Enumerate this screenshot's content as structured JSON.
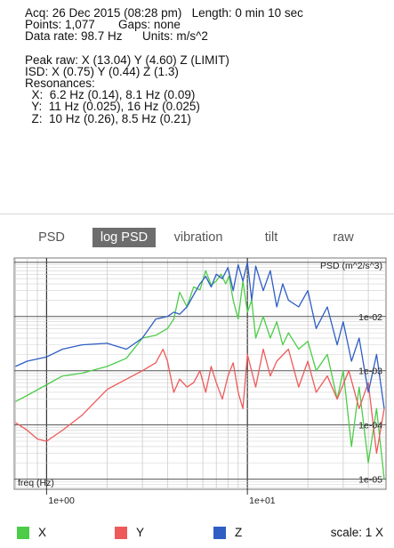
{
  "info": {
    "line1": "Acq: 26 Dec 2015 (08:28 pm)   Length: 0 min 10 sec",
    "line2": "Points: 1,077       Gaps: none",
    "line3": "Data rate: 98.7 Hz      Units: m/s^2",
    "peak": "Peak raw: X (13.04) Y (4.60) Z (LIMIT)",
    "isd": "ISD: X (0.75) Y (0.44) Z (1.3)",
    "resonances_label": "Resonances:",
    "res_x": "  X:  6.2 Hz (0.14), 8.1 Hz (0.09)",
    "res_y": "  Y:  11 Hz (0.025), 16 Hz (0.025)",
    "res_z": "  Z:  10 Hz (0.26), 8.5 Hz (0.21)"
  },
  "tabs": [
    {
      "label": "PSD",
      "active": false
    },
    {
      "label": "log PSD",
      "active": true
    },
    {
      "label": "vibration",
      "active": false
    },
    {
      "label": "tilt",
      "active": false
    },
    {
      "label": "raw",
      "active": false
    }
  ],
  "chart_data": {
    "type": "line",
    "ylabel": "PSD (m^2/s^3)",
    "xlabel": "freq (Hz)",
    "x_scale": "log",
    "y_scale": "log",
    "xlim": [
      0.69,
      49
    ],
    "ylim": [
      6.5e-06,
      0.12
    ],
    "x_ticks": [
      {
        "value": 1,
        "label": "1e+00"
      },
      {
        "value": 10,
        "label": "1e+01"
      }
    ],
    "y_ticks": [
      {
        "value": 0.01,
        "label": "1e-02"
      },
      {
        "value": 0.001,
        "label": "1e-03"
      },
      {
        "value": 0.0001,
        "label": "1e-04"
      },
      {
        "value": 1e-05,
        "label": "1e-05"
      }
    ],
    "grid": true,
    "series": [
      {
        "name": "X",
        "color": "#4ccc48",
        "x": [
          0.7,
          0.8,
          1.0,
          1.2,
          1.5,
          2.0,
          2.5,
          3.0,
          3.5,
          4.0,
          4.3,
          4.6,
          5.0,
          5.4,
          5.8,
          6.2,
          6.6,
          7.0,
          7.4,
          7.8,
          8.1,
          8.5,
          9.0,
          9.5,
          10.0,
          10.5,
          11.0,
          12.0,
          13.0,
          14.0,
          15.0,
          16.0,
          18.0,
          20.0,
          22.0,
          25.0,
          28.0,
          30.0,
          33.0,
          36.0,
          40.0,
          44.0,
          48.0
        ],
        "y": [
          0.00027,
          0.00035,
          0.00055,
          0.0008,
          0.0009,
          0.0012,
          0.0017,
          0.004,
          0.0045,
          0.006,
          0.009,
          0.028,
          0.015,
          0.035,
          0.031,
          0.07,
          0.038,
          0.045,
          0.06,
          0.04,
          0.055,
          0.02,
          0.009,
          0.045,
          0.012,
          0.02,
          0.004,
          0.01,
          0.004,
          0.008,
          0.003,
          0.005,
          0.0025,
          0.0035,
          0.001,
          0.002,
          0.0003,
          0.001,
          4e-05,
          0.0005,
          2e-05,
          0.0002,
          1e-05
        ]
      },
      {
        "name": "Y",
        "color": "#ee5a5a",
        "x": [
          0.7,
          0.8,
          0.9,
          1.0,
          1.2,
          1.5,
          2.0,
          2.5,
          3.0,
          3.5,
          3.8,
          4.0,
          4.3,
          4.6,
          5.0,
          5.4,
          5.8,
          6.2,
          6.6,
          7.0,
          7.5,
          8.0,
          8.5,
          9.0,
          9.5,
          10.0,
          11.0,
          12.0,
          13.0,
          14.0,
          16.0,
          18.0,
          20.0,
          22.0,
          25.0,
          28.0,
          32.0,
          36.0,
          40.0,
          44.0,
          48.0
        ],
        "y": [
          0.00011,
          8e-05,
          5.5e-05,
          5e-05,
          8e-05,
          0.00015,
          0.00045,
          0.0007,
          0.001,
          0.0014,
          0.0025,
          0.0015,
          0.0004,
          0.0007,
          0.0005,
          0.0006,
          0.001,
          0.0004,
          0.0012,
          0.0006,
          0.0003,
          0.0008,
          0.0014,
          0.0004,
          0.0002,
          0.002,
          0.0005,
          0.0025,
          0.0008,
          0.0015,
          0.0025,
          0.0005,
          0.0015,
          0.0004,
          0.0008,
          0.0003,
          0.001,
          0.0002,
          0.0006,
          3e-05,
          0.0002
        ]
      },
      {
        "name": "Z",
        "color": "#2f5ec4",
        "x": [
          0.7,
          0.8,
          1.0,
          1.2,
          1.5,
          2.0,
          2.5,
          3.0,
          3.5,
          4.0,
          4.3,
          4.6,
          5.0,
          5.4,
          5.8,
          6.2,
          6.6,
          7.0,
          7.5,
          8.0,
          8.5,
          9.0,
          9.5,
          10.0,
          10.5,
          11.0,
          12.0,
          13.0,
          14.0,
          15.0,
          16.0,
          18.0,
          20.0,
          22.0,
          25.0,
          28.0,
          30.0,
          33.0,
          36.0,
          40.0,
          44.0,
          48.0
        ],
        "y": [
          0.0012,
          0.0015,
          0.0018,
          0.0025,
          0.003,
          0.0032,
          0.0025,
          0.004,
          0.009,
          0.01,
          0.012,
          0.011,
          0.015,
          0.025,
          0.04,
          0.055,
          0.035,
          0.06,
          0.05,
          0.08,
          0.03,
          0.09,
          0.045,
          0.1,
          0.02,
          0.085,
          0.03,
          0.07,
          0.015,
          0.04,
          0.02,
          0.015,
          0.03,
          0.006,
          0.015,
          0.003,
          0.008,
          0.0015,
          0.004,
          0.0004,
          0.002,
          0.0002
        ]
      }
    ]
  },
  "legend": [
    {
      "label": "X",
      "color": "#4ccc48"
    },
    {
      "label": "Y",
      "color": "#ee5a5a"
    },
    {
      "label": "Z",
      "color": "#2f5ec4"
    }
  ],
  "scale_label": "scale: 1 X"
}
